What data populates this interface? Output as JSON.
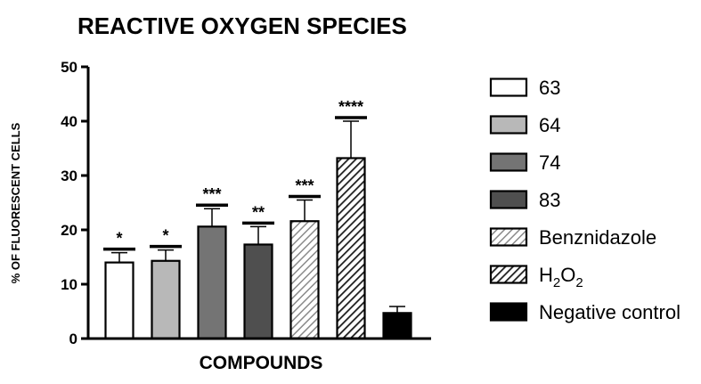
{
  "chart_data": {
    "type": "bar",
    "title": "REACTIVE OXYGEN SPECIES",
    "xlabel": "COMPOUNDS",
    "ylabel": "% OF FLUORESCENT CELLS",
    "ylim": [
      0,
      50
    ],
    "yticks": [
      "0",
      "10",
      "20",
      "30",
      "40",
      "50"
    ],
    "grid": false,
    "legend_position": "right",
    "series": [
      {
        "name": "63",
        "value": 14,
        "error": 1.8,
        "significance": "*",
        "fill": "#ffffff",
        "pattern": "none"
      },
      {
        "name": "64",
        "value": 14.3,
        "error": 2.0,
        "significance": "*",
        "fill": "#b8b8b8",
        "pattern": "none"
      },
      {
        "name": "74",
        "value": 20.6,
        "error": 3.3,
        "significance": "***",
        "fill": "#747474",
        "pattern": "none"
      },
      {
        "name": "83",
        "value": 17.3,
        "error": 3.3,
        "significance": "**",
        "fill": "#4f4f4f",
        "pattern": "none"
      },
      {
        "name": "Benznidazole",
        "value": 21.6,
        "error": 3.9,
        "significance": "***",
        "fill": "#b8b8b8",
        "pattern": "hatch"
      },
      {
        "name": "H2O2",
        "value": 33.2,
        "error": 6.8,
        "significance": "****",
        "fill": "#2a2a2a",
        "pattern": "hatch-dense"
      },
      {
        "name": "Negative control",
        "value": 4.7,
        "error": 1.2,
        "significance": "",
        "fill": "#000000",
        "pattern": "none"
      }
    ],
    "legend_text": {
      "h2o2_main": "H",
      "h2o2_sub1": "2",
      "h2o2_mid": "O",
      "h2o2_sub2": "2"
    }
  }
}
